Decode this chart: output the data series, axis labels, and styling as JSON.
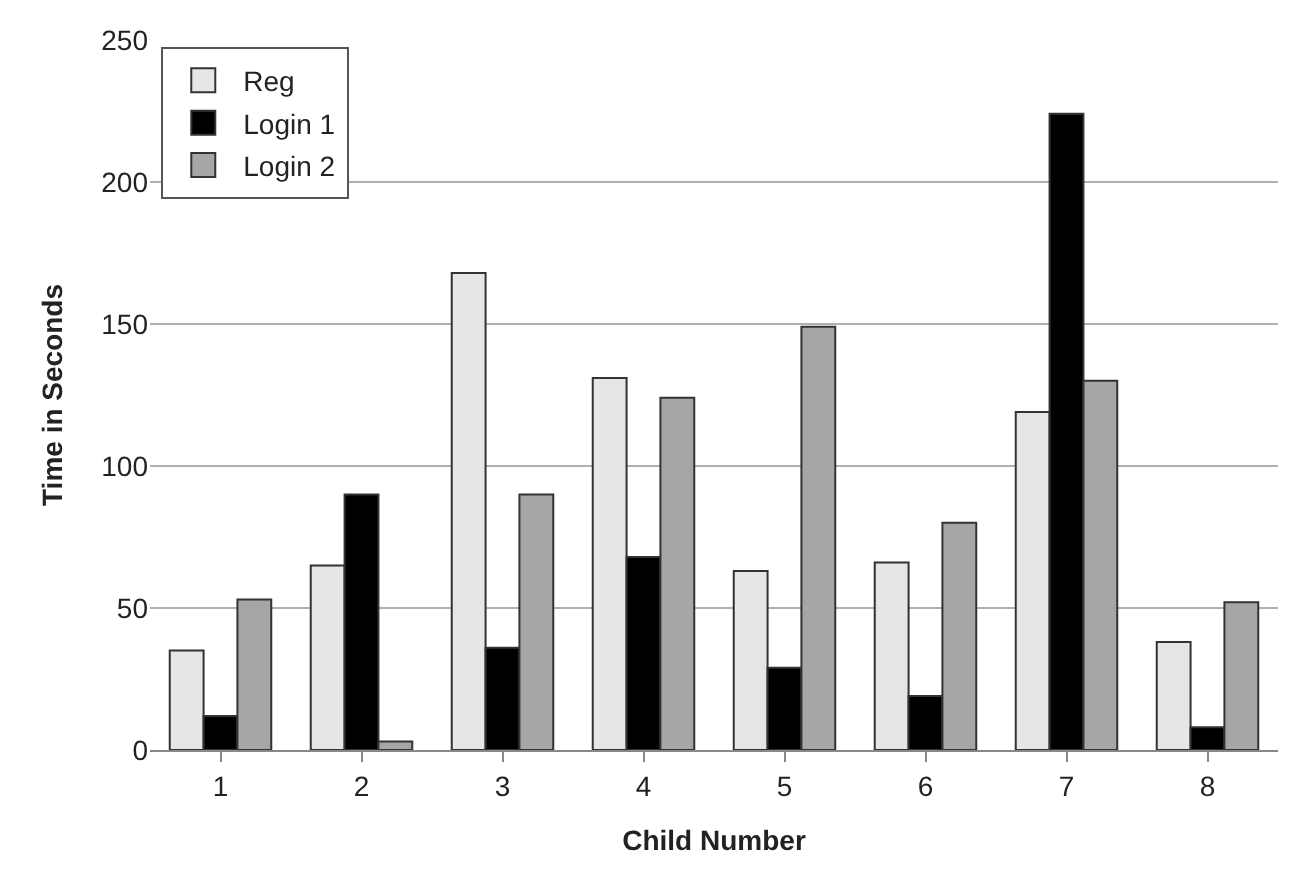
{
  "chart_data": {
    "type": "bar",
    "xlabel": "Child Number",
    "ylabel": "Time in Seconds",
    "categories": [
      "1",
      "2",
      "3",
      "4",
      "5",
      "6",
      "7",
      "8"
    ],
    "series": [
      {
        "name": "Reg",
        "color": "#e6e6e6",
        "values": [
          35,
          65,
          168,
          131,
          63,
          66,
          119,
          38
        ]
      },
      {
        "name": "Login 1",
        "color": "#000000",
        "values": [
          12,
          90,
          36,
          68,
          29,
          19,
          224,
          8
        ]
      },
      {
        "name": "Login 2",
        "color": "#a6a6a6",
        "values": [
          53,
          3,
          90,
          124,
          149,
          80,
          130,
          52
        ]
      }
    ],
    "ylim": [
      0,
      250
    ],
    "yticks": [
      0,
      50,
      100,
      150,
      200,
      250
    ],
    "grid": "y",
    "legend": "top left"
  }
}
